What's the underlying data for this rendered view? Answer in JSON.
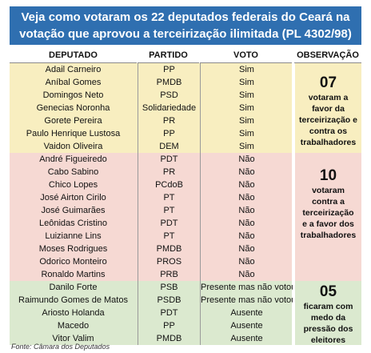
{
  "title": {
    "line1": "Veja como votaram os 22 deputados federais do Ceará na",
    "line2": "votação que aprovou a terceirização ilimitada (PL 4302/98)"
  },
  "headers": {
    "deputado": "DEPUTADO",
    "partido": "PARTIDO",
    "voto": "VOTO",
    "observacao": "OBSERVAÇÃO"
  },
  "colors": {
    "title_bg": "#2f6fb0",
    "favor_bg": "#f8eec0",
    "contra_bg": "#f6d9d3",
    "ausente_bg": "#dbe9cf"
  },
  "rows": [
    {
      "deputado": "Adail Carneiro",
      "partido": "PP",
      "voto": "Sim"
    },
    {
      "deputado": "Aníbal Gomes",
      "partido": "PMDB",
      "voto": "Sim"
    },
    {
      "deputado": "Domingos Neto",
      "partido": "PSD",
      "voto": "Sim"
    },
    {
      "deputado": "Genecias Noronha",
      "partido": "Solidariedade",
      "voto": "Sim"
    },
    {
      "deputado": "Gorete Pereira",
      "partido": "PR",
      "voto": "Sim"
    },
    {
      "deputado": "Paulo Henrique Lustosa",
      "partido": "PP",
      "voto": "Sim"
    },
    {
      "deputado": "Vaidon Oliveira",
      "partido": "DEM",
      "voto": "Sim"
    },
    {
      "deputado": "André Figueiredo",
      "partido": "PDT",
      "voto": "Não"
    },
    {
      "deputado": "Cabo Sabino",
      "partido": "PR",
      "voto": "Não"
    },
    {
      "deputado": "Chico Lopes",
      "partido": "PCdoB",
      "voto": "Não"
    },
    {
      "deputado": "José Airton Cirilo",
      "partido": "PT",
      "voto": "Não"
    },
    {
      "deputado": "José Guimarães",
      "partido": "PT",
      "voto": "Não"
    },
    {
      "deputado": "Leônidas Cristino",
      "partido": "PDT",
      "voto": "Não"
    },
    {
      "deputado": "Luizianne Lins",
      "partido": "PT",
      "voto": "Não"
    },
    {
      "deputado": "Moses Rodrigues",
      "partido": "PMDB",
      "voto": "Não"
    },
    {
      "deputado": "Odorico Monteiro",
      "partido": "PROS",
      "voto": "Não"
    },
    {
      "deputado": "Ronaldo Martins",
      "partido": "PRB",
      "voto": "Não"
    },
    {
      "deputado": "Danilo Forte",
      "partido": "PSB",
      "voto": "Presente mas não votou"
    },
    {
      "deputado": "Raimundo Gomes de Matos",
      "partido": "PSDB",
      "voto": "Presente mas não votou"
    },
    {
      "deputado": "Ariosto Holanda",
      "partido": "PDT",
      "voto": "Ausente"
    },
    {
      "deputado": "Macedo",
      "partido": "PP",
      "voto": "Ausente"
    },
    {
      "deputado": "Vitor Valim",
      "partido": "PMDB",
      "voto": "Ausente"
    }
  ],
  "observacoes": [
    {
      "num": "07",
      "lines": [
        "votaram a",
        "favor da",
        "terceirização e",
        "contra os",
        "trabalhadores"
      ]
    },
    {
      "num": "10",
      "lines": [
        "votaram",
        "contra a",
        "terceirização",
        "e a favor dos",
        "trabalhadores"
      ]
    },
    {
      "num": "05",
      "lines": [
        "ficaram com",
        "medo da",
        "pressão dos",
        "eleitores"
      ]
    }
  ],
  "source": "Fonte: Câmara dos Deputados"
}
